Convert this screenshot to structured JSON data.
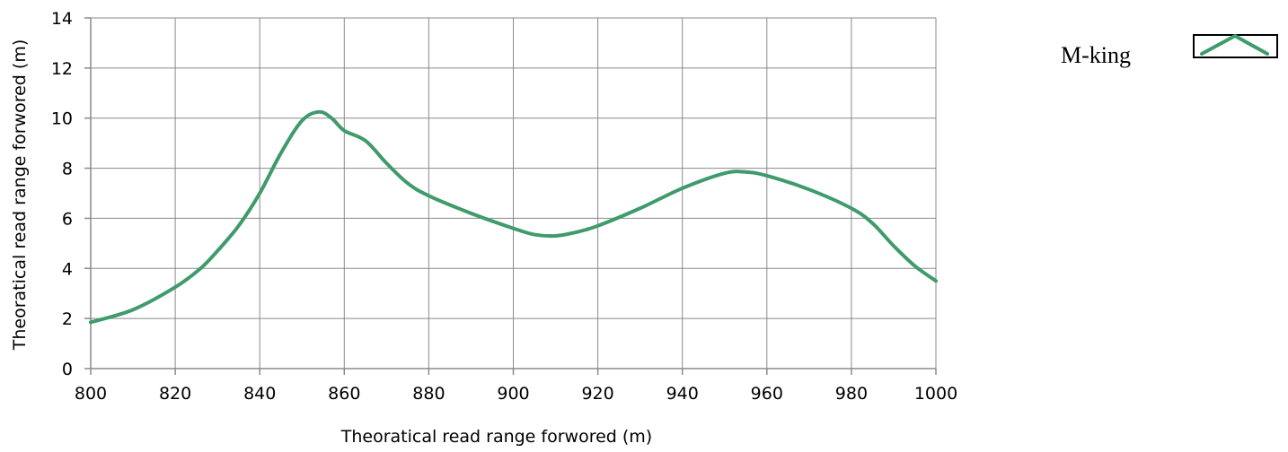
{
  "chart_data": {
    "type": "line",
    "title": "",
    "xlabel": "Theoratical read range forwored (m)",
    "ylabel": "Theoratical read range forwored (m)",
    "xlim": [
      800,
      1000
    ],
    "ylim": [
      0,
      14
    ],
    "xticks": [
      800,
      820,
      840,
      860,
      880,
      900,
      920,
      940,
      960,
      980,
      1000
    ],
    "yticks": [
      0,
      2,
      4,
      6,
      8,
      10,
      12,
      14
    ],
    "grid": true,
    "legend_position": "top-right",
    "series": [
      {
        "name": "M-king",
        "color": "#3f9b6b",
        "x": [
          800,
          810,
          820,
          826,
          830,
          835,
          840,
          845,
          850,
          854,
          857,
          860,
          865,
          870,
          875,
          880,
          890,
          900,
          905,
          910,
          915,
          920,
          930,
          940,
          950,
          955,
          960,
          970,
          980,
          985,
          990,
          995,
          1000
        ],
        "y": [
          1.85,
          2.35,
          3.25,
          4.0,
          4.7,
          5.7,
          7.0,
          8.6,
          9.9,
          10.25,
          10.0,
          9.5,
          9.1,
          8.2,
          7.4,
          6.9,
          6.2,
          5.6,
          5.35,
          5.3,
          5.45,
          5.7,
          6.4,
          7.2,
          7.8,
          7.85,
          7.7,
          7.15,
          6.4,
          5.8,
          4.9,
          4.1,
          3.5
        ]
      }
    ]
  }
}
